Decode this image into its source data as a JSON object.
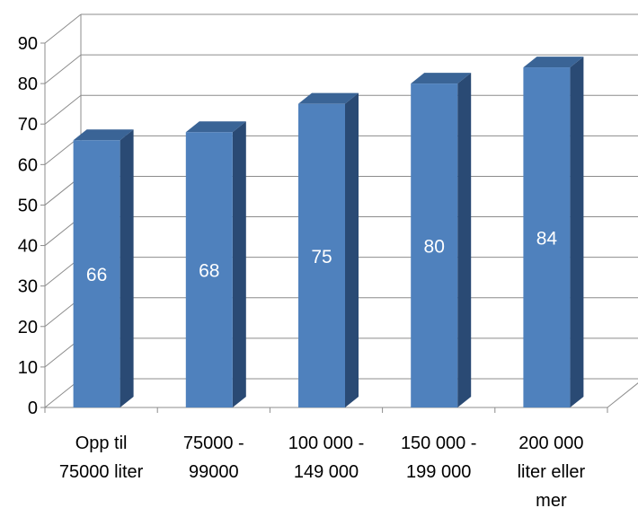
{
  "chart_data": {
    "type": "bar",
    "categories": [
      [
        "Opp til",
        "75000 liter"
      ],
      [
        "75000 -",
        "99000"
      ],
      [
        "100 000 -",
        "149 000"
      ],
      [
        "150 000 -",
        "199 000"
      ],
      [
        "200 000",
        "liter eller",
        "mer"
      ]
    ],
    "values": [
      66,
      68,
      75,
      80,
      84
    ],
    "data_labels": [
      "66",
      "68",
      "75",
      "80",
      "84"
    ],
    "y_ticks": [
      "0",
      "10",
      "20",
      "30",
      "40",
      "50",
      "60",
      "70",
      "80",
      "90"
    ],
    "ylim": [
      0,
      90
    ],
    "title": "",
    "xlabel": "",
    "ylabel": "",
    "grid": true,
    "legend": "none",
    "style": "3d-column",
    "colors": {
      "bar_front": "#4f81bd",
      "bar_side": "#2a4a74",
      "bar_top": "#3a6496",
      "gridline": "#8c8c8c",
      "axis": "#8c8c8c",
      "data_label": "#ffffff"
    }
  }
}
